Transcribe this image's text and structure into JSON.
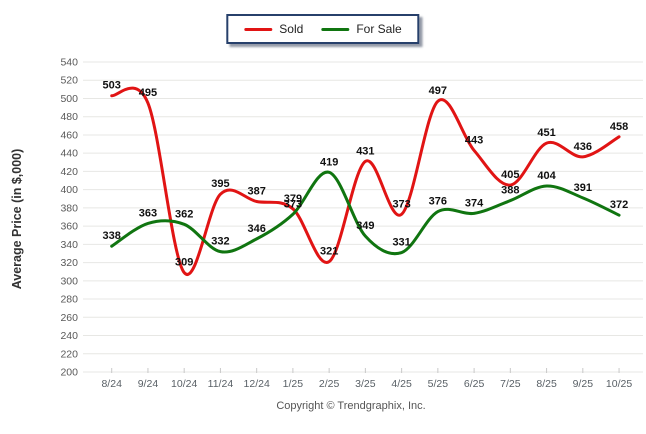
{
  "chart_data": {
    "type": "line",
    "title": "",
    "categories": [
      "8/24",
      "9/24",
      "10/24",
      "11/24",
      "12/24",
      "1/25",
      "2/25",
      "3/25",
      "4/25",
      "5/25",
      "6/25",
      "7/25",
      "8/25",
      "9/25",
      "10/25"
    ],
    "series": [
      {
        "name": "Sold",
        "color": "#e11414",
        "values": [
          503,
          495,
          309,
          395,
          387,
          379,
          321,
          431,
          373,
          497,
          443,
          405,
          451,
          436,
          458
        ]
      },
      {
        "name": "For Sale",
        "color": "#107510",
        "values": [
          338,
          363,
          362,
          332,
          346,
          373,
          419,
          349,
          331,
          376,
          374,
          388,
          404,
          391,
          372
        ]
      }
    ],
    "xlabel": "",
    "ylabel": "Average Price (in $,000)",
    "ylim": [
      200,
      540
    ],
    "ytick_step": 20,
    "grid": "horizontal",
    "legend_position": "top-center",
    "smooth": true,
    "data_labels": true
  },
  "footer": {
    "copyright": "Copyright © Trendgraphix, Inc."
  }
}
